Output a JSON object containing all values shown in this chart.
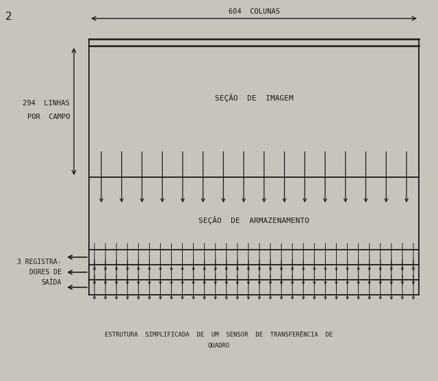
{
  "bg_color": "#c8c4bc",
  "fig2_label": "2",
  "title_top": "604  COLUNAS",
  "label_left_line1": "294  LINHAS",
  "label_left_line2": "POR  CAMPO",
  "section_image_label": "SEÇÃO  DE  IMAGEM",
  "section_storage_label": "SEÇÃO  DE  ARMAZENAMENTO",
  "label_registers_line1": "3 REGISTRA-",
  "label_registers_line2": "DORES DE",
  "label_registers_line3": "SAÍDA",
  "caption_line1": "ESTRUTURA  SIMPLIFICADA  DE  UM  SENSOR  DE  TRANSFERÊNCIA  DE",
  "caption_line2": "QUADRO",
  "line_color": "#1a1a1a",
  "font_color": "#1a1a1a",
  "font_size_labels": 7.5,
  "font_size_caption": 6.5,
  "font_size_section": 8.0,
  "num_arrows_image": 16,
  "num_arrows_reg": 30
}
